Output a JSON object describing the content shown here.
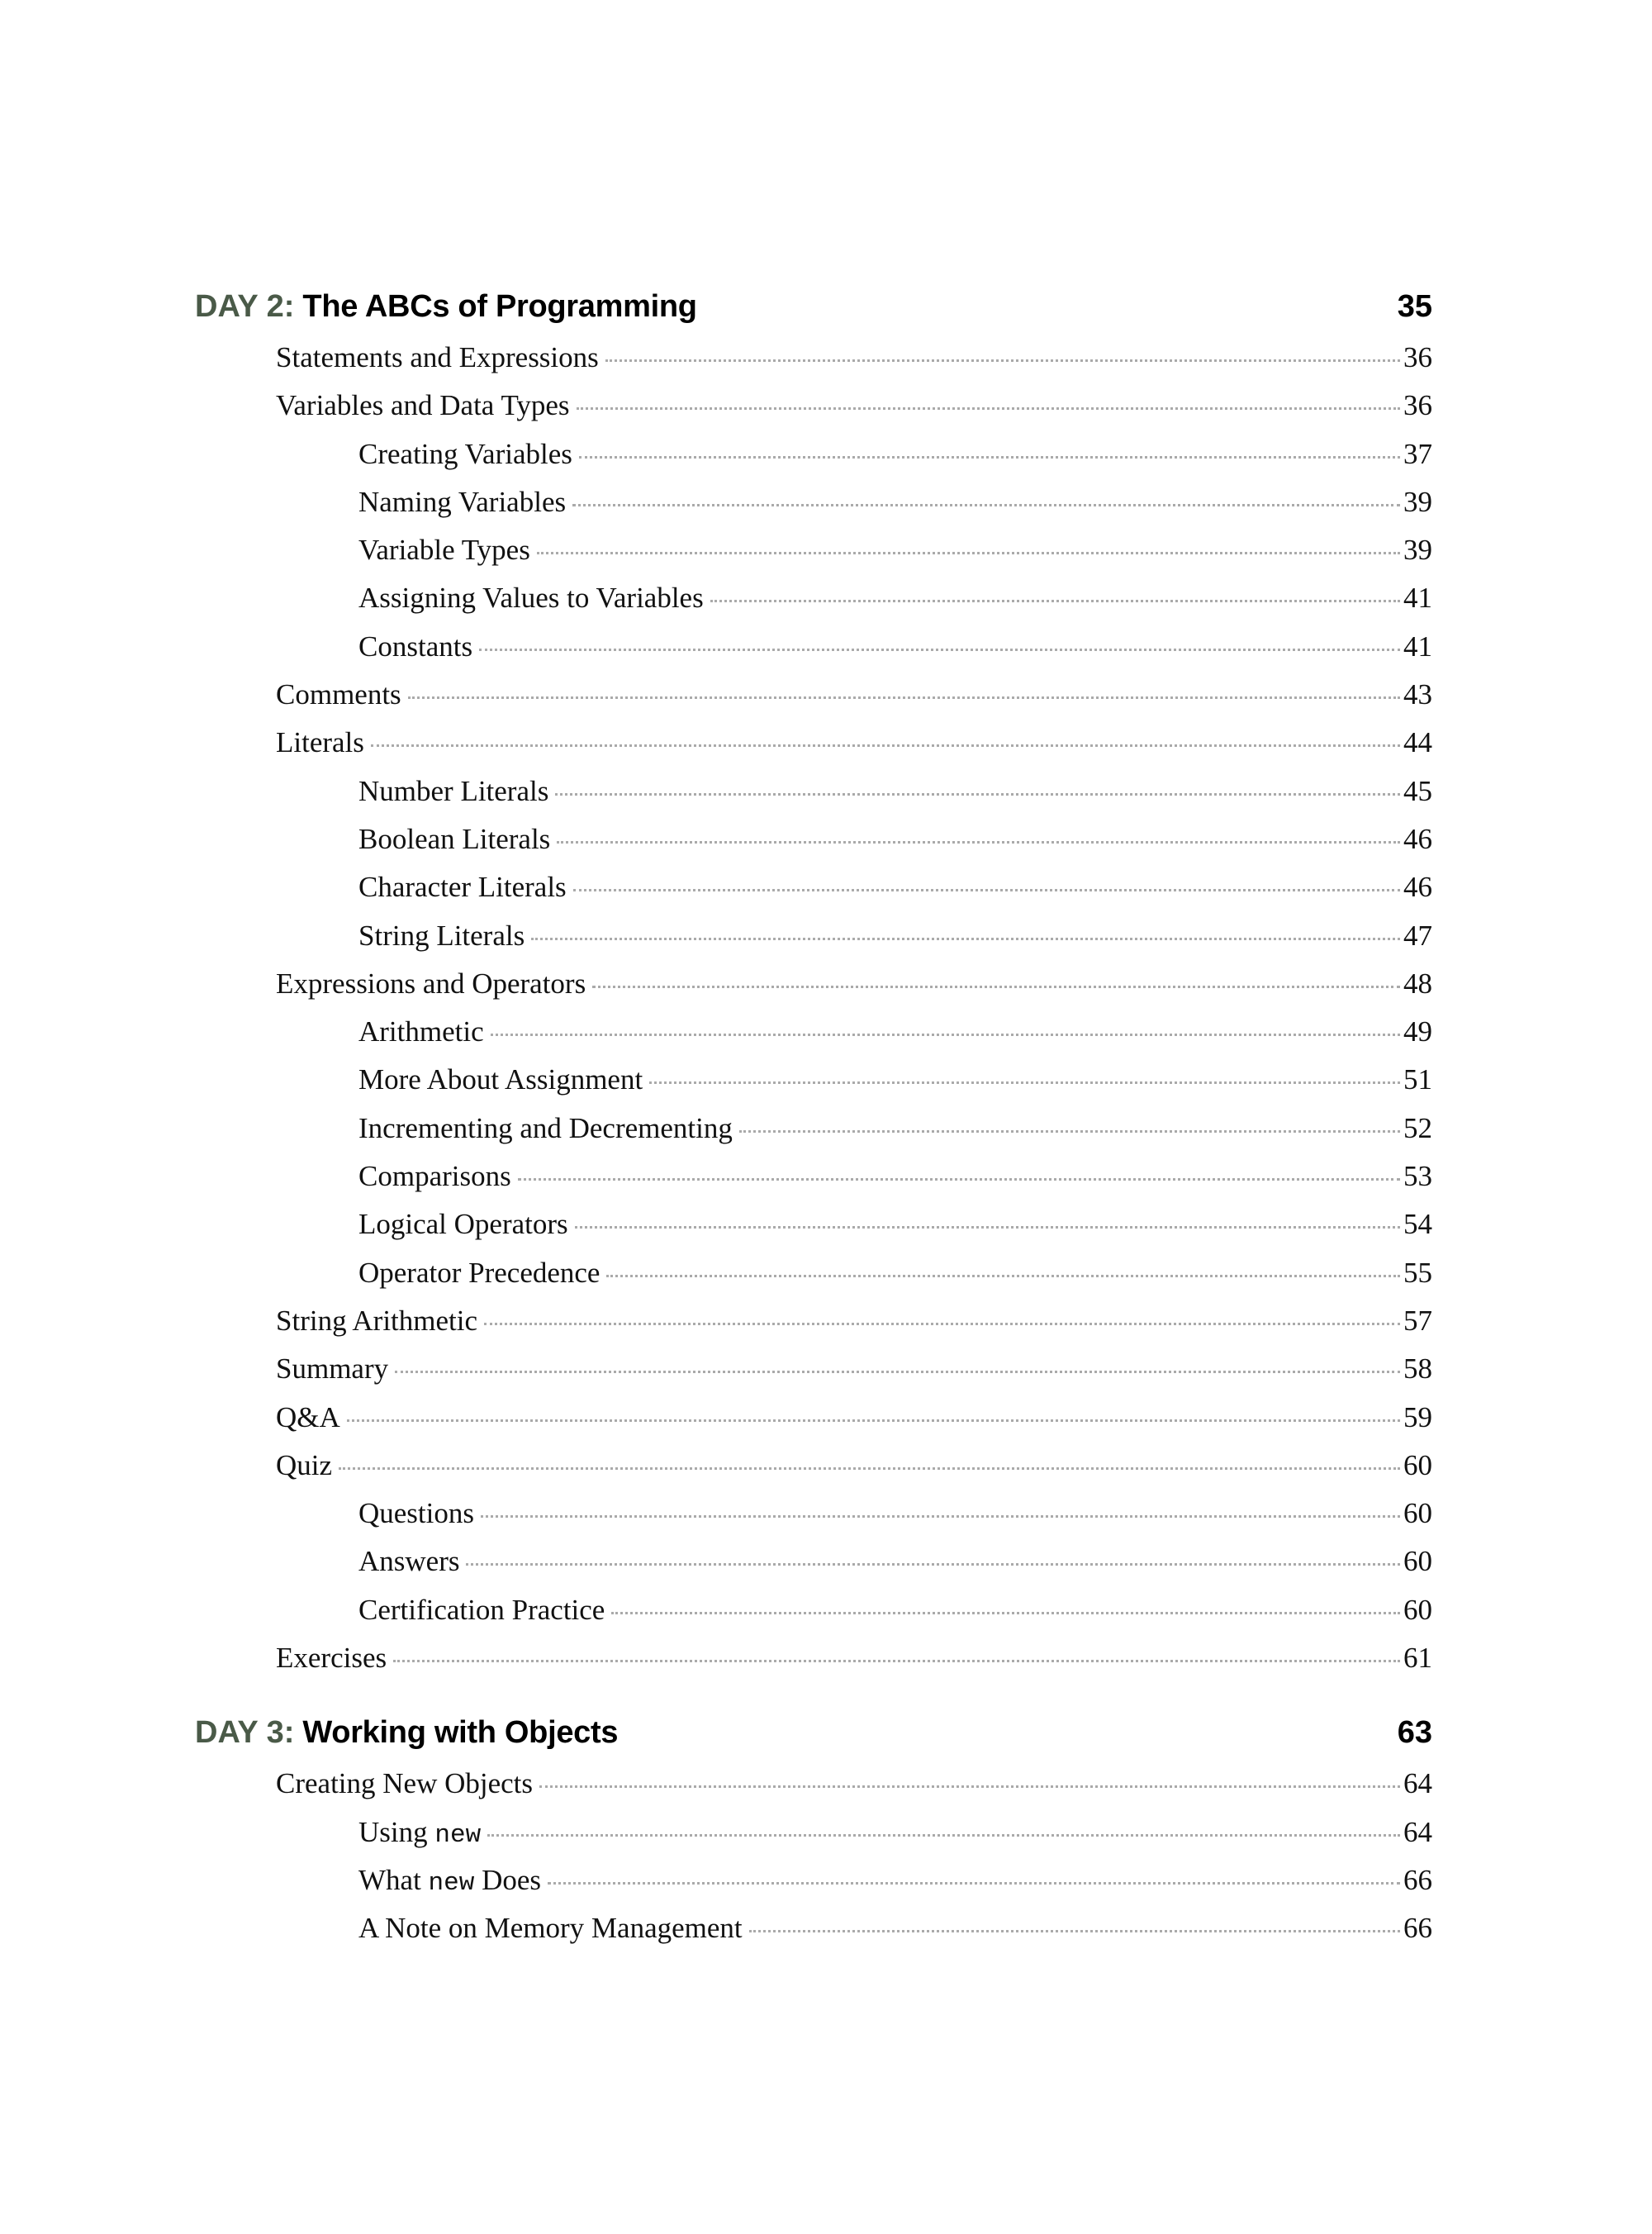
{
  "colors": {
    "day_label": "#4a5a48",
    "leader": "#aaaaaa"
  },
  "sections": [
    {
      "day": "DAY 2:",
      "title": "The ABCs of Programming",
      "page": "35",
      "entries": [
        {
          "level": 1,
          "label": [
            {
              "text": "Statements and Expressions"
            }
          ],
          "page": "36"
        },
        {
          "level": 1,
          "label": [
            {
              "text": "Variables and Data Types"
            }
          ],
          "page": "36"
        },
        {
          "level": 2,
          "label": [
            {
              "text": "Creating Variables"
            }
          ],
          "page": "37"
        },
        {
          "level": 2,
          "label": [
            {
              "text": "Naming Variables"
            }
          ],
          "page": "39"
        },
        {
          "level": 2,
          "label": [
            {
              "text": "Variable Types"
            }
          ],
          "page": "39"
        },
        {
          "level": 2,
          "label": [
            {
              "text": "Assigning Values to Variables"
            }
          ],
          "page": "41"
        },
        {
          "level": 2,
          "label": [
            {
              "text": "Constants"
            }
          ],
          "page": "41"
        },
        {
          "level": 1,
          "label": [
            {
              "text": "Comments"
            }
          ],
          "page": "43"
        },
        {
          "level": 1,
          "label": [
            {
              "text": "Literals"
            }
          ],
          "page": "44"
        },
        {
          "level": 2,
          "label": [
            {
              "text": "Number Literals"
            }
          ],
          "page": "45"
        },
        {
          "level": 2,
          "label": [
            {
              "text": "Boolean Literals"
            }
          ],
          "page": "46"
        },
        {
          "level": 2,
          "label": [
            {
              "text": "Character Literals"
            }
          ],
          "page": "46"
        },
        {
          "level": 2,
          "label": [
            {
              "text": "String Literals"
            }
          ],
          "page": "47"
        },
        {
          "level": 1,
          "label": [
            {
              "text": "Expressions and Operators"
            }
          ],
          "page": "48"
        },
        {
          "level": 2,
          "label": [
            {
              "text": "Arithmetic"
            }
          ],
          "page": "49"
        },
        {
          "level": 2,
          "label": [
            {
              "text": "More About Assignment"
            }
          ],
          "page": "51"
        },
        {
          "level": 2,
          "label": [
            {
              "text": "Incrementing and Decrementing"
            }
          ],
          "page": "52"
        },
        {
          "level": 2,
          "label": [
            {
              "text": "Comparisons"
            }
          ],
          "page": "53"
        },
        {
          "level": 2,
          "label": [
            {
              "text": "Logical Operators"
            }
          ],
          "page": "54"
        },
        {
          "level": 2,
          "label": [
            {
              "text": "Operator Precedence"
            }
          ],
          "page": "55"
        },
        {
          "level": 1,
          "label": [
            {
              "text": "String Arithmetic"
            }
          ],
          "page": "57"
        },
        {
          "level": 1,
          "label": [
            {
              "text": "Summary"
            }
          ],
          "page": "58"
        },
        {
          "level": 1,
          "label": [
            {
              "text": "Q&A"
            }
          ],
          "page": "59"
        },
        {
          "level": 1,
          "label": [
            {
              "text": "Quiz"
            }
          ],
          "page": "60"
        },
        {
          "level": 2,
          "label": [
            {
              "text": "Questions"
            }
          ],
          "page": "60"
        },
        {
          "level": 2,
          "label": [
            {
              "text": "Answers"
            }
          ],
          "page": "60"
        },
        {
          "level": 2,
          "label": [
            {
              "text": "Certification Practice"
            }
          ],
          "page": "60"
        },
        {
          "level": 1,
          "label": [
            {
              "text": "Exercises"
            }
          ],
          "page": "61"
        }
      ]
    },
    {
      "day": "DAY 3:",
      "title": "Working with Objects",
      "page": "63",
      "entries": [
        {
          "level": 1,
          "label": [
            {
              "text": "Creating New Objects"
            }
          ],
          "page": "64"
        },
        {
          "level": 2,
          "label": [
            {
              "text": "Using "
            },
            {
              "text": "new",
              "mono": true
            }
          ],
          "page": "64"
        },
        {
          "level": 2,
          "label": [
            {
              "text": "What "
            },
            {
              "text": "new",
              "mono": true
            },
            {
              "text": " Does"
            }
          ],
          "page": "66"
        },
        {
          "level": 2,
          "label": [
            {
              "text": "A Note on Memory Management"
            }
          ],
          "page": "66"
        }
      ]
    }
  ]
}
